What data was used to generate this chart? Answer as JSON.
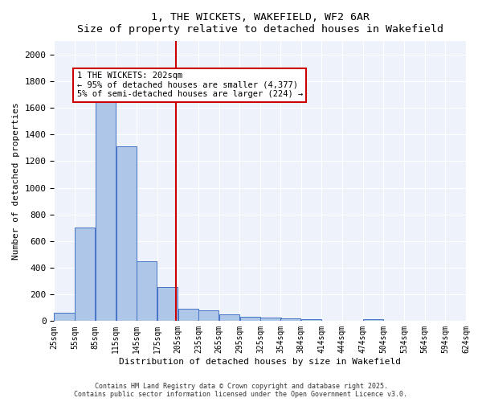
{
  "title": "1, THE WICKETS, WAKEFIELD, WF2 6AR",
  "subtitle": "Size of property relative to detached houses in Wakefield",
  "xlabel": "Distribution of detached houses by size in Wakefield",
  "ylabel": "Number of detached properties",
  "bar_color": "#aec6e8",
  "bar_edge_color": "#4472c4",
  "background_color": "#eef3fb",
  "grid_color": "#ffffff",
  "bins": [
    25,
    55,
    85,
    115,
    145,
    175,
    205,
    235,
    265,
    295,
    325,
    354,
    384,
    414,
    444,
    474,
    504,
    534,
    564,
    594,
    624
  ],
  "bin_labels": [
    "25sqm",
    "55sqm",
    "85sqm",
    "115sqm",
    "145sqm",
    "175sqm",
    "205sqm",
    "235sqm",
    "265sqm",
    "295sqm",
    "325sqm",
    "354sqm",
    "384sqm",
    "414sqm",
    "444sqm",
    "474sqm",
    "504sqm",
    "534sqm",
    "564sqm",
    "594sqm",
    "624sqm"
  ],
  "values": [
    62,
    700,
    1660,
    1310,
    450,
    255,
    95,
    80,
    50,
    35,
    25,
    20,
    15,
    5,
    0,
    15,
    0,
    0,
    0,
    0
  ],
  "vline_x": 202,
  "vline_color": "#cc0000",
  "ylim": [
    0,
    2100
  ],
  "yticks": [
    0,
    200,
    400,
    600,
    800,
    1000,
    1200,
    1400,
    1600,
    1800,
    2000
  ],
  "annotation_text": "1 THE WICKETS: 202sqm\n← 95% of detached houses are smaller (4,377)\n5% of semi-detached houses are larger (224) →",
  "footer1": "Contains HM Land Registry data © Crown copyright and database right 2025.",
  "footer2": "Contains public sector information licensed under the Open Government Licence v3.0."
}
